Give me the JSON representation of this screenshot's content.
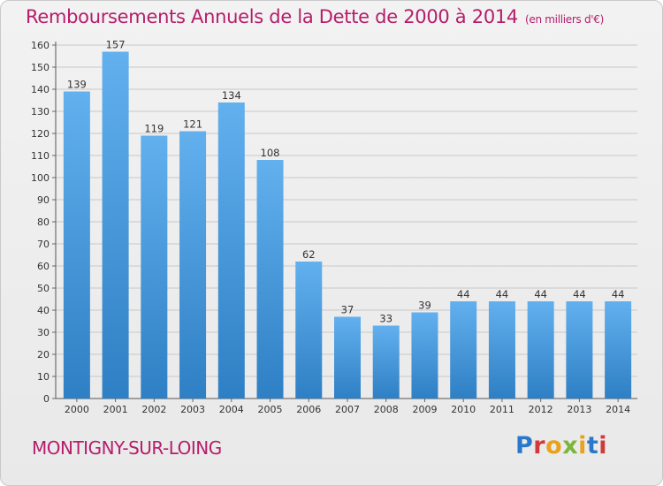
{
  "header": {
    "title": "Remboursements Annuels de la Dette de 2000 à 2014",
    "subtitle": "(en milliers d'€)"
  },
  "footer": {
    "commune": "MONTIGNY-SUR-LOING",
    "logo": "Proxiti"
  },
  "colors": {
    "accent": "#b51d6b",
    "bar_top": "#62b0ee",
    "bar_bottom": "#2e7fc4"
  },
  "chart_data": {
    "type": "bar",
    "title": "Remboursements Annuels de la Dette de 2000 à 2014",
    "subtitle": "(en milliers d'€)",
    "xlabel": "",
    "ylabel": "",
    "categories": [
      "2000",
      "2001",
      "2002",
      "2003",
      "2004",
      "2005",
      "2006",
      "2007",
      "2008",
      "2009",
      "2010",
      "2011",
      "2012",
      "2013",
      "2014"
    ],
    "values": [
      139,
      157,
      119,
      121,
      134,
      108,
      62,
      37,
      33,
      39,
      44,
      44,
      44,
      44,
      44
    ],
    "ylim": [
      0,
      160
    ],
    "yticks": [
      0,
      10,
      20,
      30,
      40,
      50,
      60,
      70,
      80,
      90,
      100,
      110,
      120,
      130,
      140,
      150,
      160
    ],
    "grid": true,
    "legend": "none"
  }
}
